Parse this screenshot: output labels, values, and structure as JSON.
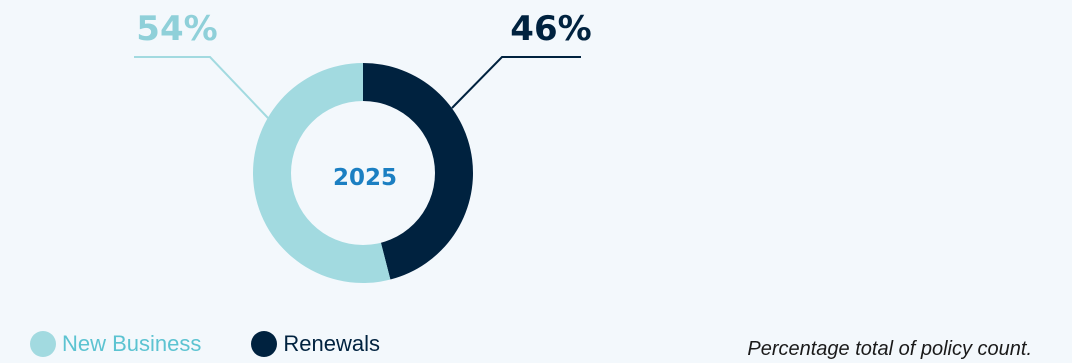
{
  "chart_data": {
    "type": "pie",
    "center_label": "2025",
    "slices": [
      {
        "name": "New Business",
        "value": 54,
        "label": "54%",
        "color": "#a2dae0"
      },
      {
        "name": "Renewals",
        "value": 46,
        "label": "46%",
        "color": "#00223f"
      }
    ],
    "legend_placement": "bottom-left",
    "center_label_color": "#1b7fc2",
    "footnote": "Percentage total of policy count."
  }
}
